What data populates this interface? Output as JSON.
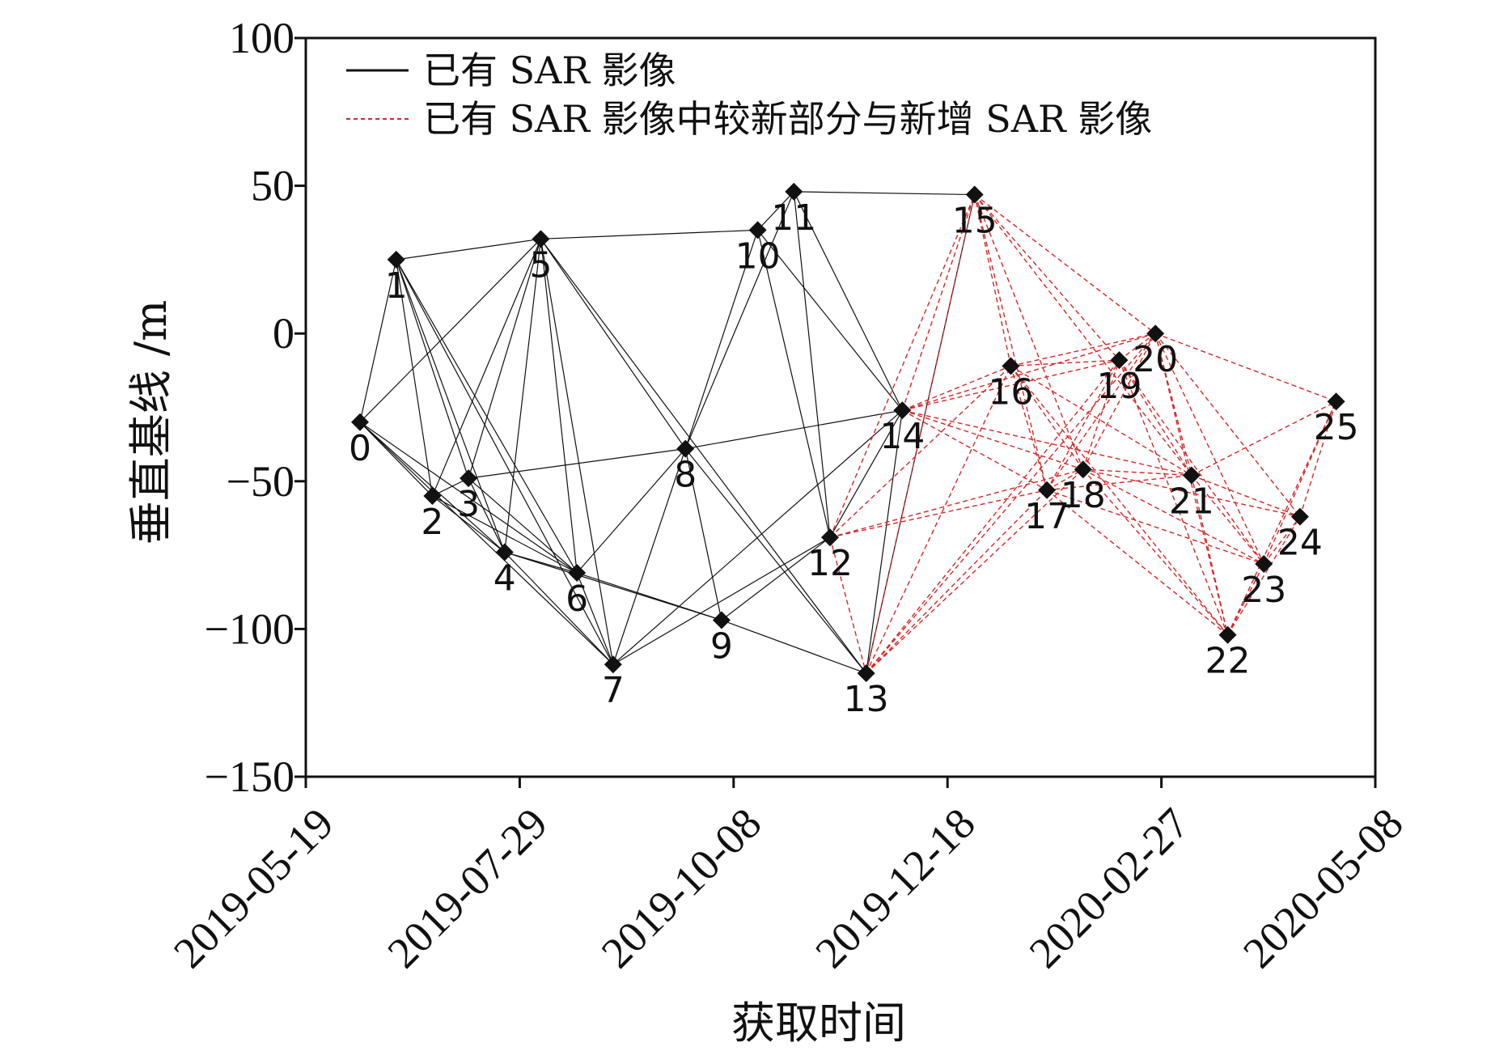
{
  "chart_data": {
    "type": "scatter",
    "title": "",
    "xlabel": "获取时间",
    "ylabel": "垂直基线 /m",
    "xlim": [
      0,
      355
    ],
    "ylim": [
      -150,
      100
    ],
    "x_ticks": [
      {
        "day": 0,
        "label": "2019-05-19"
      },
      {
        "day": 71,
        "label": "2019-07-29"
      },
      {
        "day": 142,
        "label": "2019-10-08"
      },
      {
        "day": 213,
        "label": "2019-12-18"
      },
      {
        "day": 284,
        "label": "2020-02-27"
      },
      {
        "day": 355,
        "label": "2020-05-08"
      }
    ],
    "y_ticks": [
      100,
      50,
      0,
      -50,
      -100,
      -150
    ],
    "y_tick_labels": [
      "100",
      "50",
      "0",
      "−50",
      "−100",
      "−150"
    ],
    "legend": {
      "position": "top-left",
      "entries": [
        {
          "label": "已有 SAR 影像",
          "style": "solid",
          "color": "#111111"
        },
        {
          "label": "已有 SAR 影像中较新部分与新增 SAR 影像",
          "style": "dashed",
          "color": "#d62728"
        }
      ]
    },
    "nodes": [
      {
        "id": "0",
        "day": 18,
        "baseline": -30
      },
      {
        "id": "1",
        "day": 30,
        "baseline": 25
      },
      {
        "id": "2",
        "day": 42,
        "baseline": -55
      },
      {
        "id": "3",
        "day": 54,
        "baseline": -49
      },
      {
        "id": "4",
        "day": 66,
        "baseline": -74
      },
      {
        "id": "5",
        "day": 78,
        "baseline": 32
      },
      {
        "id": "6",
        "day": 90,
        "baseline": -81
      },
      {
        "id": "7",
        "day": 102,
        "baseline": -112
      },
      {
        "id": "8",
        "day": 126,
        "baseline": -39
      },
      {
        "id": "9",
        "day": 138,
        "baseline": -97
      },
      {
        "id": "10",
        "day": 150,
        "baseline": 35
      },
      {
        "id": "11",
        "day": 162,
        "baseline": 48
      },
      {
        "id": "12",
        "day": 174,
        "baseline": -69
      },
      {
        "id": "13",
        "day": 186,
        "baseline": -115
      },
      {
        "id": "14",
        "day": 198,
        "baseline": -26
      },
      {
        "id": "15",
        "day": 222,
        "baseline": 47
      },
      {
        "id": "16",
        "day": 234,
        "baseline": -11
      },
      {
        "id": "17",
        "day": 246,
        "baseline": -53
      },
      {
        "id": "18",
        "day": 258,
        "baseline": -46
      },
      {
        "id": "19",
        "day": 270,
        "baseline": -9
      },
      {
        "id": "20",
        "day": 282,
        "baseline": 0
      },
      {
        "id": "21",
        "day": 294,
        "baseline": -48
      },
      {
        "id": "22",
        "day": 306,
        "baseline": -102
      },
      {
        "id": "23",
        "day": 318,
        "baseline": -78
      },
      {
        "id": "24",
        "day": 330,
        "baseline": -62
      },
      {
        "id": "25",
        "day": 342,
        "baseline": -23
      }
    ],
    "node_label_offsets": {
      "0": "below",
      "1": "below",
      "2": "below",
      "3": "below",
      "4": "below",
      "5": "below",
      "6": "below",
      "7": "below",
      "8": "below",
      "9": "below",
      "10": "below",
      "11": "below",
      "12": "below",
      "13": "below",
      "14": "below",
      "15": "below",
      "16": "below",
      "17": "below",
      "18": "below",
      "19": "below",
      "20": "below",
      "21": "below",
      "22": "below",
      "23": "below",
      "24": "below",
      "25": "below"
    },
    "edges_existing": [
      [
        0,
        1
      ],
      [
        0,
        2
      ],
      [
        0,
        4
      ],
      [
        0,
        5
      ],
      [
        0,
        6
      ],
      [
        0,
        7
      ],
      [
        1,
        5
      ],
      [
        1,
        2
      ],
      [
        1,
        3
      ],
      [
        1,
        4
      ],
      [
        1,
        6
      ],
      [
        1,
        7
      ],
      [
        2,
        3
      ],
      [
        2,
        4
      ],
      [
        2,
        5
      ],
      [
        2,
        6
      ],
      [
        3,
        4
      ],
      [
        3,
        5
      ],
      [
        3,
        6
      ],
      [
        3,
        8
      ],
      [
        4,
        5
      ],
      [
        4,
        6
      ],
      [
        4,
        7
      ],
      [
        4,
        9
      ],
      [
        5,
        6
      ],
      [
        5,
        7
      ],
      [
        5,
        8
      ],
      [
        5,
        10
      ],
      [
        5,
        13
      ],
      [
        6,
        7
      ],
      [
        6,
        8
      ],
      [
        6,
        9
      ],
      [
        7,
        8
      ],
      [
        7,
        12
      ],
      [
        7,
        14
      ],
      [
        8,
        9
      ],
      [
        8,
        10
      ],
      [
        8,
        11
      ],
      [
        8,
        14
      ],
      [
        8,
        13
      ],
      [
        9,
        12
      ],
      [
        9,
        13
      ],
      [
        10,
        11
      ],
      [
        10,
        12
      ],
      [
        10,
        14
      ],
      [
        11,
        12
      ],
      [
        11,
        14
      ],
      [
        11,
        15
      ],
      [
        12,
        14
      ],
      [
        13,
        14
      ],
      [
        13,
        15
      ]
    ],
    "edges_new": [
      [
        12,
        13
      ],
      [
        12,
        15
      ],
      [
        12,
        16
      ],
      [
        12,
        17
      ],
      [
        12,
        18
      ],
      [
        13,
        15
      ],
      [
        13,
        16
      ],
      [
        13,
        17
      ],
      [
        13,
        18
      ],
      [
        13,
        19
      ],
      [
        13,
        20
      ],
      [
        14,
        15
      ],
      [
        14,
        16
      ],
      [
        14,
        17
      ],
      [
        14,
        18
      ],
      [
        14,
        19
      ],
      [
        14,
        20
      ],
      [
        14,
        21
      ],
      [
        15,
        16
      ],
      [
        15,
        17
      ],
      [
        15,
        18
      ],
      [
        15,
        19
      ],
      [
        15,
        20
      ],
      [
        15,
        21
      ],
      [
        16,
        17
      ],
      [
        16,
        18
      ],
      [
        16,
        19
      ],
      [
        16,
        20
      ],
      [
        16,
        21
      ],
      [
        16,
        22
      ],
      [
        17,
        18
      ],
      [
        17,
        19
      ],
      [
        17,
        20
      ],
      [
        17,
        21
      ],
      [
        17,
        22
      ],
      [
        17,
        23
      ],
      [
        18,
        19
      ],
      [
        18,
        20
      ],
      [
        18,
        21
      ],
      [
        18,
        22
      ],
      [
        18,
        23
      ],
      [
        18,
        24
      ],
      [
        19,
        20
      ],
      [
        19,
        21
      ],
      [
        19,
        22
      ],
      [
        19,
        23
      ],
      [
        20,
        21
      ],
      [
        20,
        22
      ],
      [
        20,
        23
      ],
      [
        20,
        24
      ],
      [
        20,
        25
      ],
      [
        21,
        22
      ],
      [
        21,
        23
      ],
      [
        21,
        24
      ],
      [
        21,
        25
      ],
      [
        22,
        23
      ],
      [
        22,
        24
      ],
      [
        22,
        25
      ],
      [
        23,
        24
      ],
      [
        23,
        25
      ],
      [
        24,
        25
      ]
    ]
  }
}
